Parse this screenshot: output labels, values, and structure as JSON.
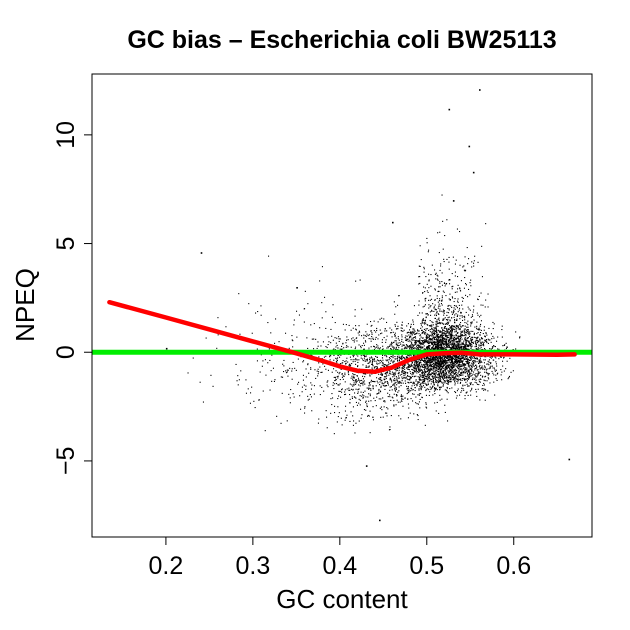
{
  "chart_data": {
    "type": "scatter",
    "title": "GC bias – Escherichia coli BW25113",
    "xlabel": "GC content",
    "ylabel": "NPEQ",
    "xlim": [
      0.115,
      0.69
    ],
    "ylim": [
      -8.5,
      12.8
    ],
    "x_ticks": [
      0.2,
      0.3,
      0.4,
      0.5,
      0.6
    ],
    "x_tick_labels": [
      "0.2",
      "0.3",
      "0.4",
      "0.5",
      "0.6"
    ],
    "y_ticks": [
      -5,
      0,
      5,
      10
    ],
    "y_tick_labels": [
      "−5",
      "0",
      "5",
      "10"
    ],
    "grid": false,
    "legend": "none",
    "colors": {
      "points": "#000000",
      "trend": "#ff0000",
      "reference": "#00ee00"
    },
    "reference_line": {
      "y": 0
    },
    "trend_line": {
      "x": [
        0.135,
        0.2,
        0.25,
        0.3,
        0.35,
        0.38,
        0.4,
        0.42,
        0.44,
        0.46,
        0.48,
        0.5,
        0.52,
        0.54,
        0.56,
        0.6,
        0.65,
        0.67
      ],
      "y": [
        2.3,
        1.6,
        1.05,
        0.5,
        -0.05,
        -0.4,
        -0.65,
        -0.85,
        -0.9,
        -0.7,
        -0.35,
        -0.1,
        -0.05,
        -0.02,
        -0.1,
        -0.1,
        -0.12,
        -0.1
      ]
    },
    "scatter_highlights": {
      "x": [
        0.525,
        0.56,
        0.548,
        0.553,
        0.46,
        0.53,
        0.43,
        0.445,
        0.663,
        0.24,
        0.2,
        0.35
      ],
      "y": [
        11.2,
        12.1,
        9.5,
        8.3,
        6.0,
        7.0,
        -5.2,
        -7.7,
        -4.9,
        4.6,
        0.2,
        3.0
      ]
    }
  }
}
